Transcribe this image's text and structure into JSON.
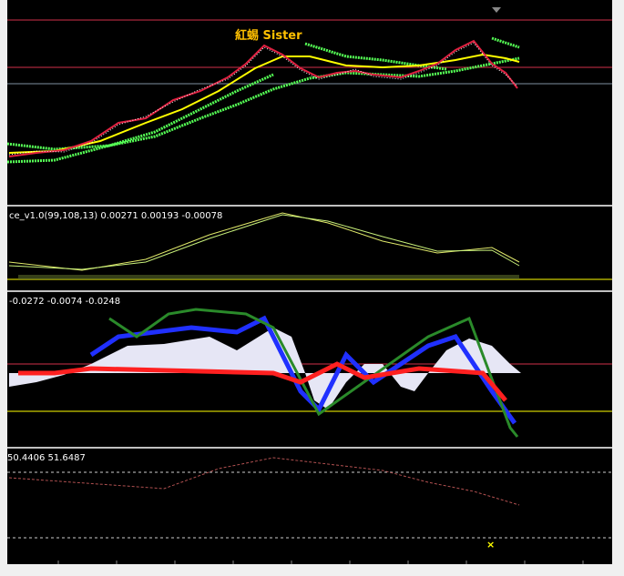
{
  "main_chart": {
    "title": "紅蜴 Sister"
  },
  "indicator_1": {
    "label": "ce_v1.0(99,108,13) 0.00271 0.00193 -0.00078"
  },
  "indicator_2": {
    "label": "-0.0272 -0.0074 -0.0248"
  },
  "indicator_3": {
    "label": "50.4406 51.6487"
  },
  "marker": {
    "label": "×"
  }
}
